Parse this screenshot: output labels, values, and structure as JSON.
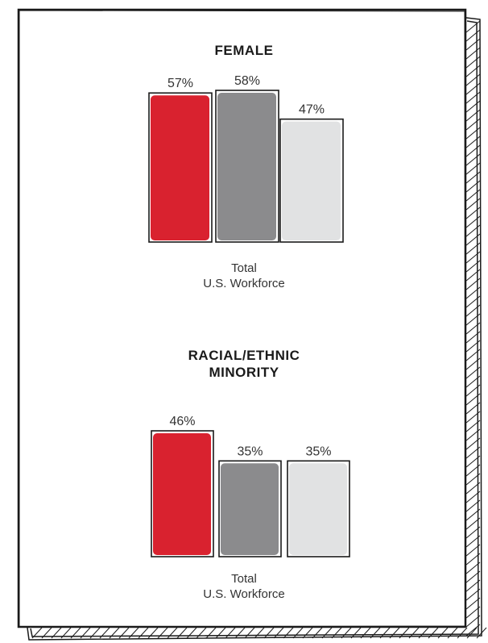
{
  "colors": {
    "series1": "#d9222f",
    "series2": "#8b8b8d",
    "series3": "#e1e2e3",
    "outline": "#1a1a1a",
    "label": "#333333"
  },
  "chart_data": [
    {
      "type": "bar",
      "title": "FEMALE",
      "categories": [
        "Total\nU.S. Workforce"
      ],
      "category_lines": [
        "Total",
        "U.S. Workforce"
      ],
      "series": [
        {
          "values": [
            57
          ]
        },
        {
          "values": [
            58
          ]
        },
        {
          "values": [
            47
          ]
        }
      ],
      "value_labels": [
        "57%",
        "58%",
        "47%"
      ],
      "ylim": [
        0,
        58
      ],
      "grid": false,
      "legend": "none"
    },
    {
      "type": "bar",
      "title": "RACIAL/ETHNIC MINORITY",
      "title_lines": [
        "RACIAL/ETHNIC",
        "MINORITY"
      ],
      "categories": [
        "Total\nU.S. Workforce"
      ],
      "category_lines": [
        "Total",
        "U.S. Workforce"
      ],
      "series": [
        {
          "values": [
            46
          ]
        },
        {
          "values": [
            35
          ]
        },
        {
          "values": [
            35
          ]
        }
      ],
      "value_labels": [
        "46%",
        "35%",
        "35%"
      ],
      "ylim": [
        0,
        46
      ],
      "grid": false,
      "legend": "none"
    }
  ]
}
